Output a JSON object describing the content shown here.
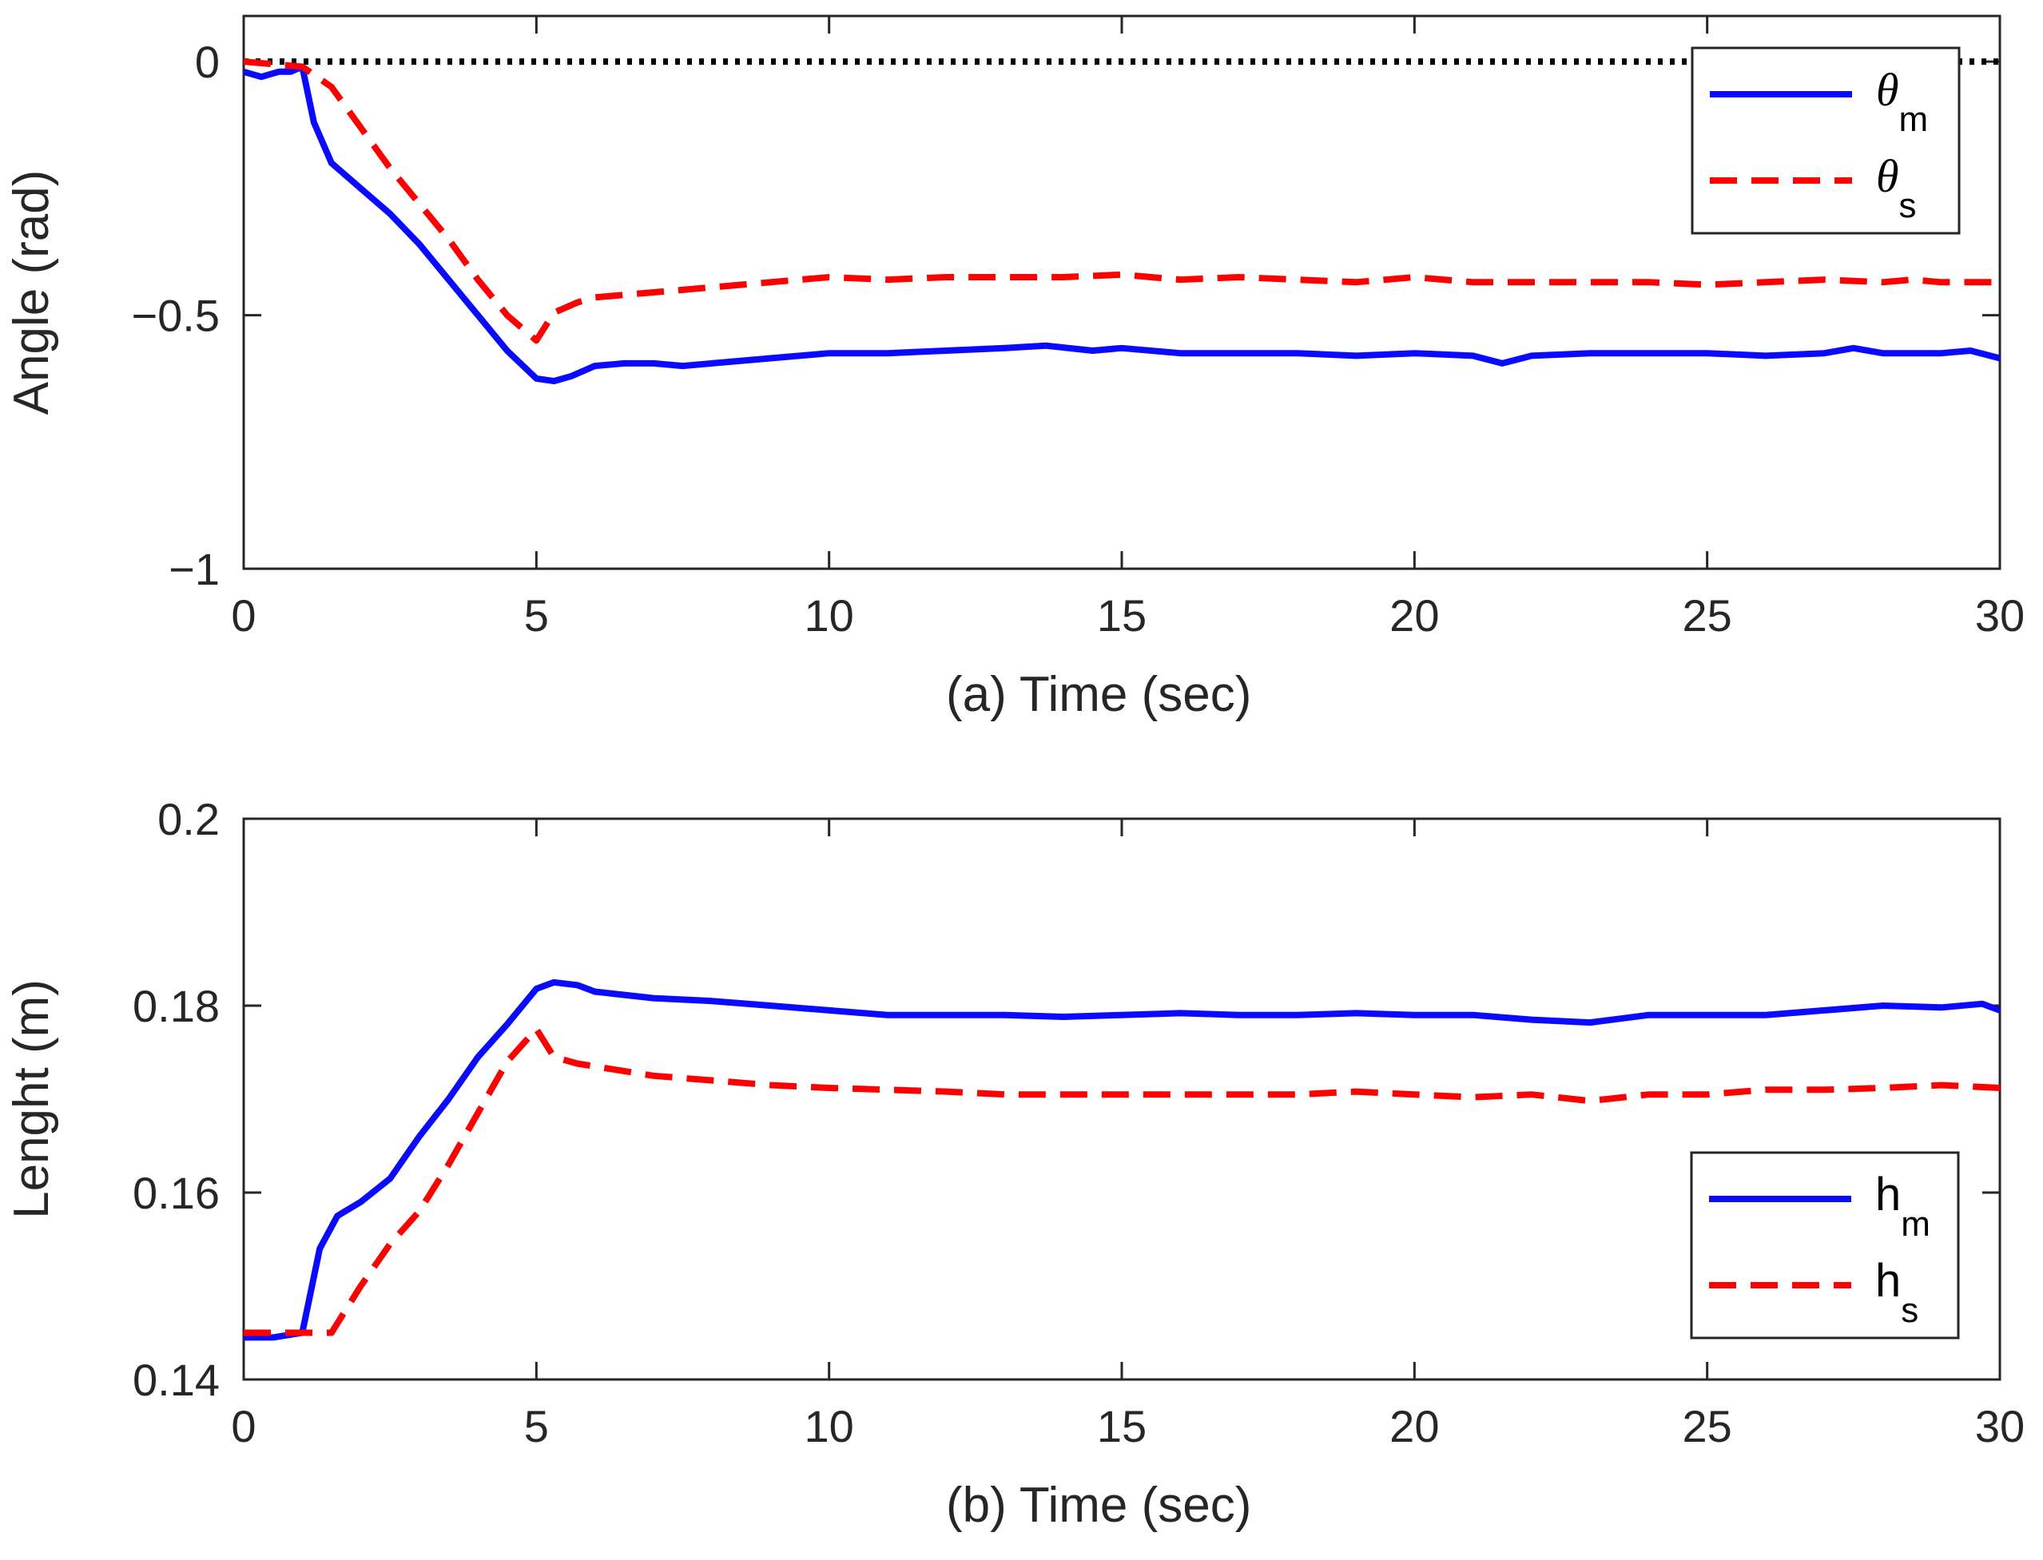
{
  "chart_data": [
    {
      "type": "line",
      "panel": "a",
      "xlabel_prefix": "(a)",
      "xlabel": "Time (sec)",
      "ylabel": "Angle (rad)",
      "xlim": [
        0,
        30
      ],
      "ylim": [
        -1,
        0.09
      ],
      "xticks": [
        0,
        5,
        10,
        15,
        20,
        25,
        30
      ],
      "xtick_labels": [
        "0",
        "5",
        "10",
        "15",
        "20",
        "25",
        "30"
      ],
      "yticks": [
        -1,
        -0.5,
        0
      ],
      "ytick_labels": [
        "−1",
        "−0.5",
        "0"
      ],
      "legend_position": "top-right",
      "reference_line": {
        "y": 0,
        "style": "dotted",
        "color": "#000000"
      },
      "series": [
        {
          "name": "θ",
          "subscript": "m",
          "color": "#0a0aff",
          "style": "solid",
          "x": [
            0,
            0.3,
            0.6,
            0.8,
            1.0,
            1.2,
            1.5,
            2.0,
            2.5,
            3.0,
            3.5,
            4.0,
            4.5,
            5.0,
            5.3,
            5.6,
            6.0,
            6.5,
            7.0,
            7.5,
            8.0,
            9.0,
            10.0,
            11.0,
            12.0,
            13.0,
            13.7,
            14.5,
            15.0,
            16.0,
            17.0,
            18.0,
            19.0,
            20.0,
            21.0,
            21.5,
            22.0,
            23.0,
            24.0,
            25.0,
            26.0,
            27.0,
            27.5,
            28.0,
            29.0,
            29.5,
            30.0
          ],
          "y": [
            -0.02,
            -0.03,
            -0.02,
            -0.02,
            -0.01,
            -0.12,
            -0.2,
            -0.25,
            -0.3,
            -0.36,
            -0.43,
            -0.5,
            -0.57,
            -0.625,
            -0.63,
            -0.62,
            -0.6,
            -0.595,
            -0.595,
            -0.6,
            -0.595,
            -0.585,
            -0.575,
            -0.575,
            -0.57,
            -0.565,
            -0.56,
            -0.57,
            -0.565,
            -0.575,
            -0.575,
            -0.575,
            -0.58,
            -0.575,
            -0.58,
            -0.595,
            -0.58,
            -0.575,
            -0.575,
            -0.575,
            -0.58,
            -0.575,
            -0.565,
            -0.575,
            -0.575,
            -0.57,
            -0.585
          ]
        },
        {
          "name": "θ",
          "subscript": "s",
          "color": "#ff0000",
          "style": "dashed",
          "x": [
            0,
            0.5,
            1.0,
            1.5,
            2.0,
            2.5,
            3.0,
            3.5,
            4.0,
            4.5,
            5.0,
            5.3,
            5.7,
            6.0,
            7.0,
            8.0,
            9.0,
            10.0,
            11.0,
            12.0,
            13.0,
            14.0,
            15.0,
            16.0,
            17.0,
            18.0,
            19.0,
            20.0,
            21.0,
            22.0,
            23.0,
            24.0,
            25.0,
            26.0,
            27.0,
            28.0,
            28.5,
            29.0,
            30.0
          ],
          "y": [
            0.0,
            -0.005,
            -0.01,
            -0.05,
            -0.13,
            -0.21,
            -0.28,
            -0.35,
            -0.43,
            -0.5,
            -0.55,
            -0.495,
            -0.475,
            -0.465,
            -0.455,
            -0.445,
            -0.435,
            -0.425,
            -0.43,
            -0.425,
            -0.425,
            -0.425,
            -0.42,
            -0.43,
            -0.425,
            -0.43,
            -0.435,
            -0.425,
            -0.435,
            -0.435,
            -0.435,
            -0.435,
            -0.44,
            -0.435,
            -0.43,
            -0.435,
            -0.43,
            -0.435,
            -0.435
          ]
        }
      ]
    },
    {
      "type": "line",
      "panel": "b",
      "xlabel_prefix": "(b)",
      "xlabel": "Time (sec)",
      "ylabel": "Lenght (m)",
      "xlim": [
        0,
        30
      ],
      "ylim": [
        0.14,
        0.2
      ],
      "xticks": [
        0,
        5,
        10,
        15,
        20,
        25,
        30
      ],
      "xtick_labels": [
        "0",
        "5",
        "10",
        "15",
        "20",
        "25",
        "30"
      ],
      "yticks": [
        0.14,
        0.16,
        0.18,
        0.2
      ],
      "ytick_labels": [
        "0.14",
        "0.16",
        "0.18",
        "0.2"
      ],
      "legend_position": "bottom-right",
      "series": [
        {
          "name": "h",
          "subscript": "m",
          "color": "#0a0aff",
          "style": "solid",
          "x": [
            0,
            0.5,
            1.0,
            1.1,
            1.3,
            1.6,
            2.0,
            2.5,
            3.0,
            3.5,
            4.0,
            4.5,
            5.0,
            5.3,
            5.7,
            6.0,
            7.0,
            8.0,
            9.0,
            10.0,
            11.0,
            12.0,
            13.0,
            14.0,
            15.0,
            16.0,
            17.0,
            18.0,
            19.0,
            20.0,
            21.0,
            22.0,
            23.0,
            24.0,
            25.0,
            26.0,
            27.0,
            28.0,
            29.0,
            29.7,
            30.0
          ],
          "y": [
            0.1445,
            0.1445,
            0.145,
            0.148,
            0.154,
            0.1575,
            0.159,
            0.1615,
            0.166,
            0.17,
            0.1745,
            0.178,
            0.1818,
            0.1825,
            0.1822,
            0.1815,
            0.1808,
            0.1805,
            0.18,
            0.1795,
            0.179,
            0.179,
            0.179,
            0.1788,
            0.179,
            0.1792,
            0.179,
            0.179,
            0.1792,
            0.179,
            0.179,
            0.1785,
            0.1782,
            0.179,
            0.179,
            0.179,
            0.1795,
            0.18,
            0.1798,
            0.1802,
            0.1795
          ]
        },
        {
          "name": "h",
          "subscript": "s",
          "color": "#ff0000",
          "style": "dashed",
          "x": [
            0,
            0.5,
            1.0,
            1.5,
            2.0,
            2.5,
            3.0,
            3.5,
            4.0,
            4.5,
            5.0,
            5.3,
            5.7,
            6.0,
            7.0,
            8.0,
            9.0,
            10.0,
            11.0,
            12.0,
            13.0,
            14.0,
            15.0,
            16.0,
            17.0,
            18.0,
            19.0,
            20.0,
            21.0,
            22.0,
            23.0,
            24.0,
            25.0,
            26.0,
            27.0,
            28.0,
            29.0,
            30.0
          ],
          "y": [
            0.145,
            0.145,
            0.145,
            0.145,
            0.15,
            0.1545,
            0.158,
            0.163,
            0.1685,
            0.174,
            0.1775,
            0.1745,
            0.1738,
            0.1735,
            0.1725,
            0.172,
            0.1715,
            0.1712,
            0.171,
            0.1708,
            0.1705,
            0.1705,
            0.1705,
            0.1705,
            0.1705,
            0.1705,
            0.1708,
            0.1705,
            0.1702,
            0.1705,
            0.1698,
            0.1705,
            0.1705,
            0.171,
            0.171,
            0.1712,
            0.1715,
            0.1712
          ]
        }
      ]
    }
  ]
}
